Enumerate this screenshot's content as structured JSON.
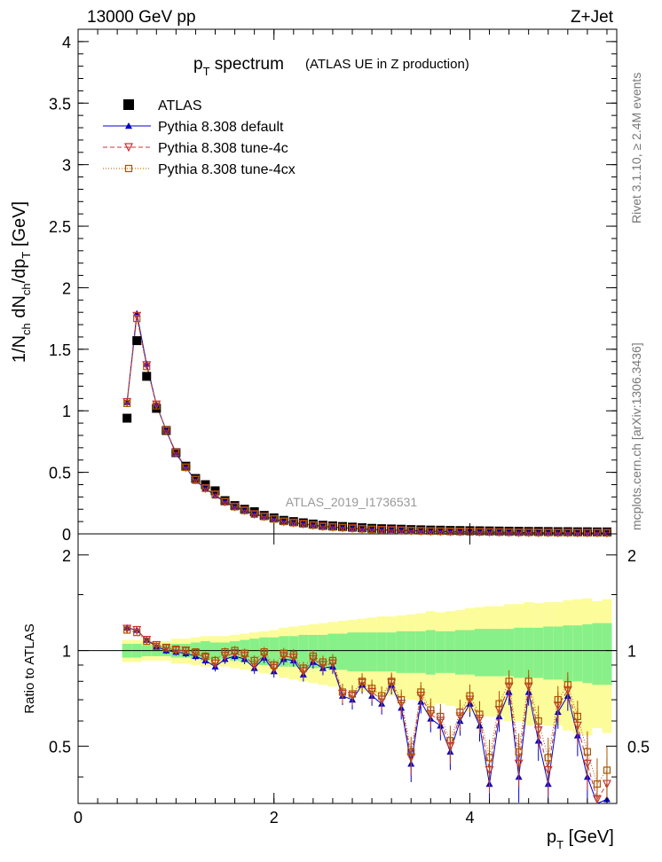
{
  "header": {
    "left": "13000 GeV pp",
    "right": "Z+Jet"
  },
  "title": {
    "main": "p",
    "main_sub": "T",
    "main_rest": " spectrum",
    "paren": "(ATLAS UE in Z production)"
  },
  "side_labels": {
    "rivet": "Rivet 3.1.10, ≥ 2.4M events",
    "mcplots": "mcplots.cern.ch [arXiv:1306.3436]"
  },
  "watermark": "ATLAS_2019_I1736531",
  "legend": [
    {
      "label": "ATLAS",
      "color": "#000000",
      "marker": "square-filled"
    },
    {
      "label": "Pythia 8.308 default",
      "color": "#0000cc",
      "marker": "triangle"
    },
    {
      "label": "Pythia 8.308 tune-4c",
      "color": "#cc3333",
      "marker": "star-open"
    },
    {
      "label": "Pythia 8.308 tune-4cx",
      "color": "#aa5500",
      "marker": "square-open"
    }
  ],
  "axes": {
    "ylabel_top": "1/N_ch dN_ch/dp_T [GeV]",
    "ylabel_bottom": "Ratio to ATLAS",
    "xlabel": "p_T [GeV]",
    "top_yticks": [
      "0",
      "0.5",
      "1",
      "1.5",
      "2",
      "2.5",
      "3",
      "3.5",
      "4"
    ],
    "bottom_yticks": [
      "0.5",
      "1",
      "2"
    ],
    "xticks": [
      "0",
      "2",
      "4"
    ]
  },
  "colors": {
    "band_inner": "#88f088",
    "band_outer": "#fcfc9a",
    "atlas": "#000000",
    "default": "#0000cc",
    "tune4c": "#cc3333",
    "tune4cx": "#aa5500"
  },
  "chart_data": {
    "type": "line",
    "xlim": [
      0,
      5.5
    ],
    "ylim_top": [
      0,
      4.1
    ],
    "ylim_ratio": [
      0.33,
      2.33
    ],
    "x": [
      0.5,
      0.6,
      0.7,
      0.8,
      0.9,
      1.0,
      1.1,
      1.2,
      1.3,
      1.4,
      1.5,
      1.6,
      1.7,
      1.8,
      1.9,
      2.0,
      2.1,
      2.2,
      2.3,
      2.4,
      2.5,
      2.6,
      2.7,
      2.8,
      2.9,
      3.0,
      3.1,
      3.2,
      3.3,
      3.4,
      3.5,
      3.6,
      3.7,
      3.8,
      3.9,
      4.0,
      4.1,
      4.2,
      4.3,
      4.4,
      4.5,
      4.6,
      4.7,
      4.8,
      4.9,
      5.0,
      5.1,
      5.2,
      5.3,
      5.4
    ],
    "series": [
      {
        "name": "ATLAS",
        "values": [
          0.94,
          1.57,
          1.28,
          1.02,
          0.84,
          0.66,
          0.55,
          0.45,
          0.4,
          0.35,
          0.27,
          0.23,
          0.2,
          0.18,
          0.15,
          0.13,
          0.11,
          0.1,
          0.09,
          0.08,
          0.07,
          0.065,
          0.06,
          0.055,
          0.05,
          0.045,
          0.042,
          0.04,
          0.038,
          0.035,
          0.033,
          0.031,
          0.03,
          0.028,
          0.027,
          0.026,
          0.025,
          0.024,
          0.023,
          0.022,
          0.021,
          0.02,
          0.02,
          0.019,
          0.018,
          0.018,
          0.017,
          0.017,
          0.016,
          0.016
        ]
      },
      {
        "name": "Pythia 8.308 default",
        "values": [
          1.07,
          1.79,
          1.38,
          1.05,
          0.84,
          0.65,
          0.54,
          0.43,
          0.37,
          0.31,
          0.26,
          0.22,
          0.19,
          0.16,
          0.14,
          0.12,
          0.1,
          0.09,
          0.08,
          0.07,
          0.06,
          0.055,
          0.05,
          0.045,
          0.04,
          0.035,
          0.032,
          0.03,
          0.028,
          0.025,
          0.023,
          0.021,
          0.02,
          0.018,
          0.017,
          0.016,
          0.015,
          0.014,
          0.013,
          0.012,
          0.011,
          0.011,
          0.01,
          0.01,
          0.009,
          0.009,
          0.008,
          0.008,
          0.008,
          0.007
        ]
      },
      {
        "name": "Pythia 8.308 tune-4c",
        "values": [
          1.07,
          1.77,
          1.37,
          1.05,
          0.84,
          0.66,
          0.54,
          0.44,
          0.37,
          0.32,
          0.26,
          0.22,
          0.19,
          0.16,
          0.14,
          0.12,
          0.1,
          0.09,
          0.08,
          0.07,
          0.06,
          0.055,
          0.05,
          0.045,
          0.04,
          0.035,
          0.032,
          0.03,
          0.028,
          0.025,
          0.023,
          0.021,
          0.02,
          0.018,
          0.017,
          0.016,
          0.015,
          0.014,
          0.013,
          0.012,
          0.011,
          0.011,
          0.01,
          0.01,
          0.009,
          0.009,
          0.008,
          0.008,
          0.008,
          0.007
        ]
      },
      {
        "name": "Pythia 8.308 tune-4cx",
        "values": [
          1.06,
          1.75,
          1.36,
          1.04,
          0.84,
          0.66,
          0.54,
          0.44,
          0.37,
          0.32,
          0.26,
          0.22,
          0.19,
          0.16,
          0.14,
          0.12,
          0.1,
          0.09,
          0.08,
          0.07,
          0.06,
          0.055,
          0.05,
          0.045,
          0.04,
          0.035,
          0.032,
          0.03,
          0.028,
          0.025,
          0.023,
          0.021,
          0.02,
          0.018,
          0.017,
          0.016,
          0.015,
          0.014,
          0.013,
          0.012,
          0.011,
          0.011,
          0.01,
          0.01,
          0.009,
          0.009,
          0.008,
          0.008,
          0.008,
          0.007
        ]
      }
    ],
    "ratio": {
      "band_inner": [
        0.05,
        0.05,
        0.04,
        0.04,
        0.04,
        0.05,
        0.05,
        0.06,
        0.07,
        0.06,
        0.06,
        0.07,
        0.08,
        0.09,
        0.1,
        0.1,
        0.11,
        0.11,
        0.12,
        0.12,
        0.12,
        0.13,
        0.13,
        0.14,
        0.14,
        0.14,
        0.14,
        0.14,
        0.15,
        0.15,
        0.15,
        0.16,
        0.15,
        0.15,
        0.16,
        0.16,
        0.17,
        0.17,
        0.17,
        0.17,
        0.18,
        0.18,
        0.18,
        0.19,
        0.19,
        0.2,
        0.2,
        0.21,
        0.22,
        0.22
      ],
      "band_outer": [
        0.08,
        0.08,
        0.07,
        0.07,
        0.07,
        0.09,
        0.09,
        0.1,
        0.11,
        0.11,
        0.11,
        0.12,
        0.13,
        0.14,
        0.15,
        0.16,
        0.18,
        0.19,
        0.2,
        0.21,
        0.22,
        0.23,
        0.24,
        0.25,
        0.26,
        0.27,
        0.28,
        0.28,
        0.29,
        0.3,
        0.31,
        0.33,
        0.32,
        0.33,
        0.34,
        0.36,
        0.37,
        0.38,
        0.38,
        0.4,
        0.4,
        0.42,
        0.41,
        0.42,
        0.42,
        0.44,
        0.45,
        0.46,
        0.43,
        0.45
      ],
      "default": [
        1.18,
        1.16,
        1.08,
        1.03,
        1.0,
        0.99,
        0.98,
        0.96,
        0.93,
        0.89,
        0.94,
        0.96,
        0.94,
        0.88,
        0.95,
        0.86,
        0.94,
        0.93,
        0.84,
        0.92,
        0.88,
        0.89,
        0.72,
        0.7,
        0.78,
        0.72,
        0.68,
        0.78,
        0.66,
        0.44,
        0.69,
        0.61,
        0.58,
        0.48,
        0.6,
        0.68,
        0.58,
        0.38,
        0.62,
        0.74,
        0.4,
        0.74,
        0.52,
        0.38,
        0.64,
        0.72,
        0.54,
        0.4,
        0.3,
        0.34
      ],
      "tune4c": [
        1.17,
        1.16,
        1.08,
        1.04,
        1.02,
        1.0,
        1.0,
        0.98,
        0.95,
        0.91,
        0.96,
        0.98,
        0.96,
        0.9,
        0.97,
        0.88,
        0.96,
        0.95,
        0.86,
        0.94,
        0.9,
        0.91,
        0.73,
        0.72,
        0.79,
        0.74,
        0.7,
        0.79,
        0.68,
        0.46,
        0.72,
        0.63,
        0.6,
        0.5,
        0.62,
        0.7,
        0.61,
        0.42,
        0.65,
        0.77,
        0.44,
        0.77,
        0.56,
        0.42,
        0.67,
        0.75,
        0.58,
        0.44,
        0.34,
        0.38
      ],
      "tune4cx": [
        1.16,
        1.14,
        1.07,
        1.03,
        1.02,
        1.01,
        1.0,
        0.99,
        0.96,
        0.93,
        0.99,
        1.0,
        0.98,
        0.93,
        0.99,
        0.9,
        0.98,
        0.97,
        0.88,
        0.96,
        0.92,
        0.93,
        0.74,
        0.73,
        0.8,
        0.76,
        0.72,
        0.8,
        0.7,
        0.48,
        0.74,
        0.65,
        0.62,
        0.52,
        0.64,
        0.72,
        0.63,
        0.46,
        0.68,
        0.8,
        0.48,
        0.8,
        0.6,
        0.46,
        0.7,
        0.78,
        0.62,
        0.48,
        0.38,
        0.42
      ]
    }
  }
}
